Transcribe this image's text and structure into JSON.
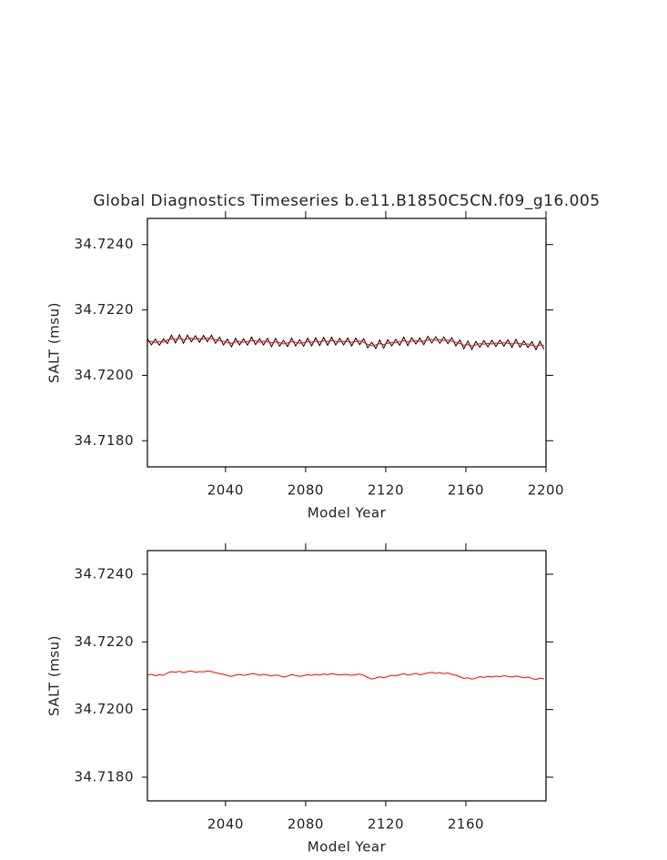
{
  "chart_data": [
    {
      "type": "line",
      "title": "Global Diagnostics Timeseries b.e11.B1850C5CN.f09_g16.005",
      "xlabel": "Model Year",
      "ylabel": "SALT (msu)",
      "xlim": [
        2001,
        2200
      ],
      "ylim": [
        34.7172,
        34.7248
      ],
      "xticks": [
        2040,
        2080,
        2120,
        2160,
        2200
      ],
      "yticks": [
        {
          "value": 34.718,
          "label": "34.7180"
        },
        {
          "value": 34.72,
          "label": "34.7200"
        },
        {
          "value": 34.722,
          "label": "34.7220"
        },
        {
          "value": 34.724,
          "label": "34.7240"
        }
      ],
      "x": [
        2001,
        2003,
        2005,
        2007,
        2009,
        2011,
        2013,
        2015,
        2017,
        2019,
        2021,
        2023,
        2025,
        2027,
        2029,
        2031,
        2033,
        2035,
        2037,
        2039,
        2041,
        2043,
        2045,
        2047,
        2049,
        2051,
        2053,
        2055,
        2057,
        2059,
        2061,
        2063,
        2065,
        2067,
        2069,
        2071,
        2073,
        2075,
        2077,
        2079,
        2081,
        2083,
        2085,
        2087,
        2089,
        2091,
        2093,
        2095,
        2097,
        2099,
        2101,
        2103,
        2105,
        2107,
        2109,
        2111,
        2113,
        2115,
        2117,
        2119,
        2121,
        2123,
        2125,
        2127,
        2129,
        2131,
        2133,
        2135,
        2137,
        2139,
        2141,
        2143,
        2145,
        2147,
        2149,
        2151,
        2153,
        2155,
        2157,
        2159,
        2161,
        2163,
        2165,
        2167,
        2169,
        2171,
        2173,
        2175,
        2177,
        2179,
        2181,
        2183,
        2185,
        2187,
        2189,
        2191,
        2193,
        2195,
        2197,
        2199
      ],
      "series": [
        {
          "color": "#000000",
          "values": [
            34.72113,
            34.72093,
            34.72111,
            34.72092,
            34.72112,
            34.72097,
            34.72123,
            34.72099,
            34.72124,
            34.72098,
            34.72123,
            34.72103,
            34.72121,
            34.72101,
            34.72122,
            34.72103,
            34.72123,
            34.72098,
            34.72117,
            34.72093,
            34.72111,
            34.72087,
            34.72113,
            34.72093,
            34.72112,
            34.72092,
            34.72117,
            34.72094,
            34.72112,
            34.72093,
            34.72113,
            34.72088,
            34.72113,
            34.72089,
            34.72107,
            34.72088,
            34.72114,
            34.7209,
            34.72109,
            34.72089,
            34.72114,
            34.7209,
            34.72115,
            34.72091,
            34.72116,
            34.72092,
            34.72117,
            34.72093,
            34.72113,
            34.72093,
            34.72114,
            34.7209,
            34.72114,
            34.72094,
            34.72112,
            34.72084,
            34.72101,
            34.72082,
            34.72108,
            34.72083,
            34.72109,
            34.7209,
            34.7211,
            34.72092,
            34.72117,
            34.72091,
            34.72115,
            34.72096,
            34.72114,
            34.72094,
            34.72119,
            34.72099,
            34.72118,
            34.72098,
            34.72117,
            34.72097,
            34.72115,
            34.7209,
            34.72108,
            34.72081,
            34.72105,
            34.72079,
            34.72104,
            34.72086,
            34.72106,
            34.72087,
            34.72107,
            34.72088,
            34.72108,
            34.72089,
            34.72109,
            34.72085,
            34.7211,
            34.72086,
            34.72105,
            34.72085,
            34.72103,
            34.72078,
            34.72104,
            34.7208
          ]
        },
        {
          "color": "#ff0000",
          "values": [
            34.72102,
            34.72104,
            34.721,
            34.72103,
            34.72101,
            34.72108,
            34.72112,
            34.7211,
            34.72113,
            34.72109,
            34.72112,
            34.72114,
            34.7211,
            34.72112,
            34.72111,
            34.72114,
            34.72112,
            34.72109,
            34.72106,
            34.72104,
            34.721,
            34.72098,
            34.72102,
            34.72104,
            34.72101,
            34.72103,
            34.72106,
            34.72105,
            34.72101,
            34.72104,
            34.72102,
            34.72099,
            34.72102,
            34.721,
            34.72096,
            34.72099,
            34.72103,
            34.72101,
            34.72098,
            34.721,
            34.72103,
            34.72101,
            34.72104,
            34.72102,
            34.72105,
            34.72103,
            34.72106,
            34.72104,
            34.72102,
            34.72104,
            34.72103,
            34.72101,
            34.72103,
            34.72105,
            34.72101,
            34.72095,
            34.7209,
            34.72093,
            34.72097,
            34.72094,
            34.72098,
            34.72101,
            34.72099,
            34.72103,
            34.72106,
            34.72102,
            34.72104,
            34.72107,
            34.72103,
            34.72105,
            34.72108,
            34.7211,
            34.72107,
            34.72109,
            34.72106,
            34.72108,
            34.72104,
            34.72101,
            34.72097,
            34.72092,
            34.72094,
            34.7209,
            34.72093,
            34.72097,
            34.72095,
            34.72098,
            34.72096,
            34.72099,
            34.72097,
            34.721,
            34.72098,
            34.72096,
            34.72099,
            34.72097,
            34.72094,
            34.72096,
            34.72092,
            34.72089,
            34.72093,
            34.72091
          ]
        }
      ]
    },
    {
      "type": "line",
      "xlabel": "Model Year",
      "ylabel": "SALT (msu)",
      "xlim": [
        2001,
        2200
      ],
      "ylim": [
        34.7173,
        34.7247
      ],
      "xticks": [
        2040,
        2080,
        2120,
        2160
      ],
      "yticks": [
        {
          "value": 34.718,
          "label": "34.7180"
        },
        {
          "value": 34.72,
          "label": "34.7200"
        },
        {
          "value": 34.722,
          "label": "34.7220"
        },
        {
          "value": 34.724,
          "label": "34.7240"
        }
      ],
      "x": [
        2001,
        2003,
        2005,
        2007,
        2009,
        2011,
        2013,
        2015,
        2017,
        2019,
        2021,
        2023,
        2025,
        2027,
        2029,
        2031,
        2033,
        2035,
        2037,
        2039,
        2041,
        2043,
        2045,
        2047,
        2049,
        2051,
        2053,
        2055,
        2057,
        2059,
        2061,
        2063,
        2065,
        2067,
        2069,
        2071,
        2073,
        2075,
        2077,
        2079,
        2081,
        2083,
        2085,
        2087,
        2089,
        2091,
        2093,
        2095,
        2097,
        2099,
        2101,
        2103,
        2105,
        2107,
        2109,
        2111,
        2113,
        2115,
        2117,
        2119,
        2121,
        2123,
        2125,
        2127,
        2129,
        2131,
        2133,
        2135,
        2137,
        2139,
        2141,
        2143,
        2145,
        2147,
        2149,
        2151,
        2153,
        2155,
        2157,
        2159,
        2161,
        2163,
        2165,
        2167,
        2169,
        2171,
        2173,
        2175,
        2177,
        2179,
        2181,
        2183,
        2185,
        2187,
        2189,
        2191,
        2193,
        2195,
        2197,
        2199
      ],
      "series": [
        {
          "color": "#ff0000",
          "values": [
            34.72102,
            34.72104,
            34.721,
            34.72103,
            34.72101,
            34.72108,
            34.72112,
            34.7211,
            34.72113,
            34.72109,
            34.72112,
            34.72114,
            34.7211,
            34.72112,
            34.72111,
            34.72114,
            34.72112,
            34.72109,
            34.72106,
            34.72104,
            34.721,
            34.72098,
            34.72102,
            34.72104,
            34.72101,
            34.72103,
            34.72106,
            34.72105,
            34.72101,
            34.72104,
            34.72102,
            34.72099,
            34.72102,
            34.721,
            34.72096,
            34.72099,
            34.72103,
            34.72101,
            34.72098,
            34.721,
            34.72103,
            34.72101,
            34.72104,
            34.72102,
            34.72105,
            34.72103,
            34.72106,
            34.72104,
            34.72102,
            34.72104,
            34.72103,
            34.72101,
            34.72103,
            34.72105,
            34.72101,
            34.72095,
            34.7209,
            34.72093,
            34.72097,
            34.72094,
            34.72098,
            34.72101,
            34.72099,
            34.72103,
            34.72106,
            34.72102,
            34.72104,
            34.72107,
            34.72103,
            34.72105,
            34.72108,
            34.7211,
            34.72107,
            34.72109,
            34.72106,
            34.72108,
            34.72104,
            34.72101,
            34.72097,
            34.72092,
            34.72094,
            34.7209,
            34.72093,
            34.72097,
            34.72095,
            34.72098,
            34.72096,
            34.72099,
            34.72097,
            34.721,
            34.72098,
            34.72096,
            34.72099,
            34.72097,
            34.72094,
            34.72096,
            34.72092,
            34.72089,
            34.72093,
            34.72091
          ]
        }
      ]
    }
  ]
}
